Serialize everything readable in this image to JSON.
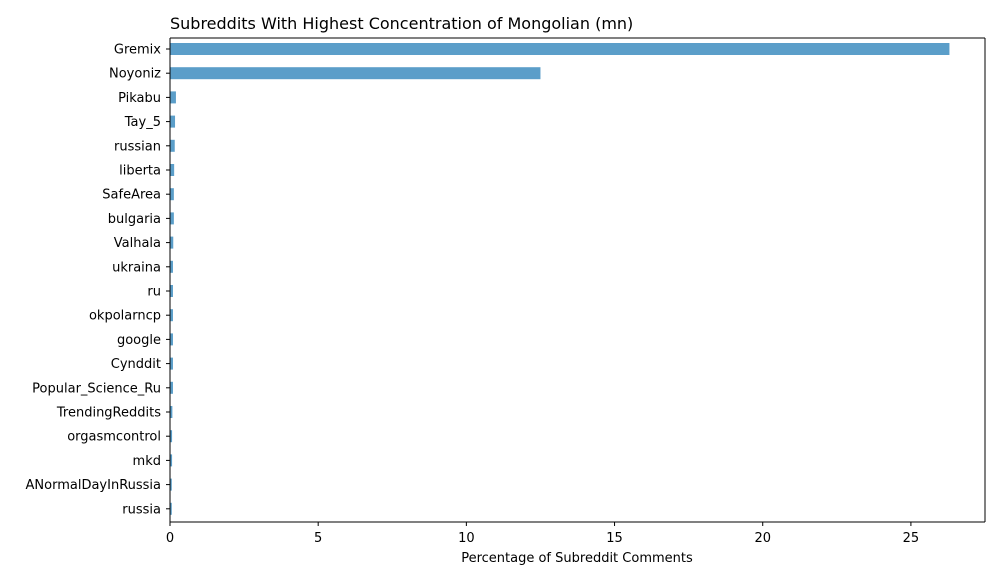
{
  "chart_data": {
    "type": "bar",
    "orientation": "horizontal",
    "title": "Subreddits With Highest Concentration of Mongolian (mn)",
    "xlabel": "Percentage of Subreddit Comments",
    "ylabel": "",
    "xlim": [
      0,
      27.5
    ],
    "xticks": [
      "0",
      "5",
      "10",
      "15",
      "20",
      "25"
    ],
    "grid": false,
    "bar_color": "#5b9ec9",
    "categories": [
      "Gremix",
      "Noyoniz",
      "Pikabu",
      "Tay_5",
      "russian",
      "liberta",
      "SafeArea",
      "bulgaria",
      "Valhala",
      "ukraina",
      "ru",
      "okpolarncp",
      "google",
      "Cynddit",
      "Popular_Science_Ru",
      "TrendingReddits",
      "orgasmcontrol",
      "mkd",
      "ANormalDayInRussia",
      "russia"
    ],
    "values": [
      26.3,
      12.5,
      0.2,
      0.17,
      0.16,
      0.14,
      0.13,
      0.13,
      0.11,
      0.1,
      0.1,
      0.1,
      0.1,
      0.1,
      0.1,
      0.08,
      0.07,
      0.07,
      0.06,
      0.06
    ]
  }
}
